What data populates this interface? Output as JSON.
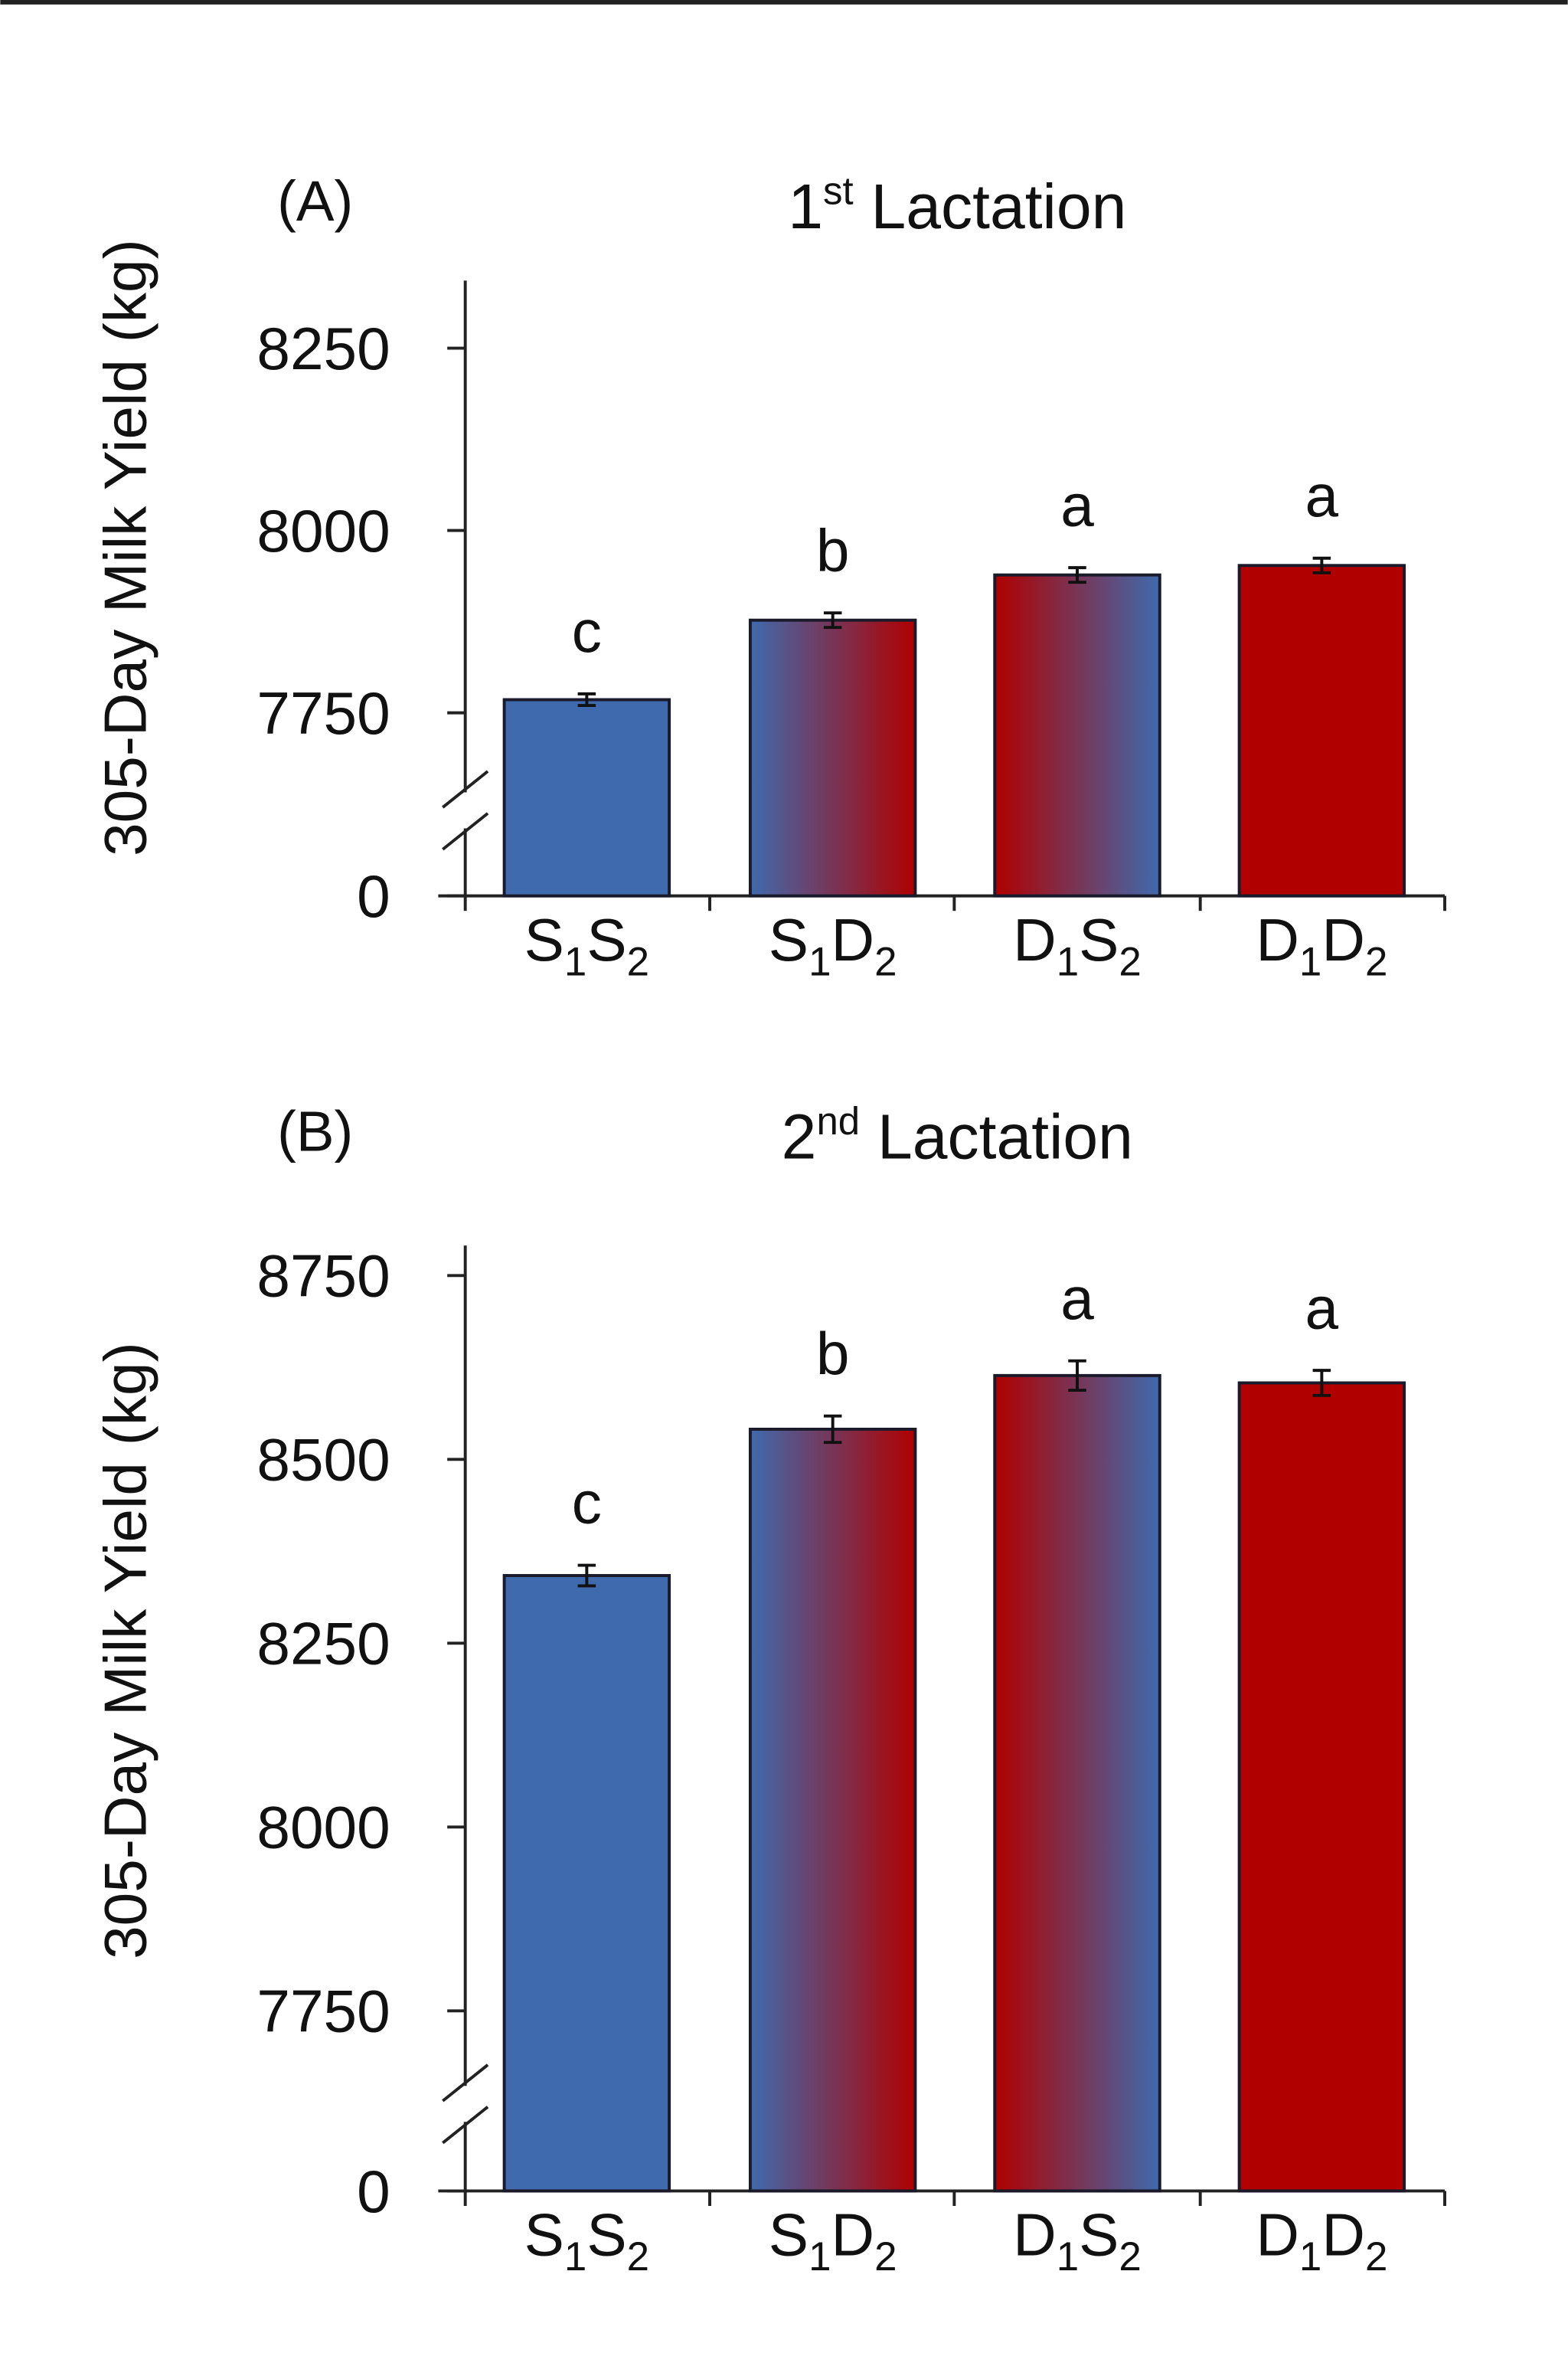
{
  "colors": {
    "blue": "#3f6aad",
    "red": "#b00000",
    "axis": "#222222"
  },
  "chart_data": [
    {
      "type": "bar",
      "panel_label": "(A)",
      "title": {
        "main": "1",
        "sup": "st",
        "rest": " Lactation"
      },
      "ylabel": "305-Day Milk Yield (kg)",
      "categories": [
        "S1S2",
        "S1D2",
        "D1S2",
        "D1D2"
      ],
      "values": [
        7768,
        7877,
        7939,
        7952
      ],
      "errors": [
        8,
        10,
        10,
        10
      ],
      "letters": [
        "c",
        "b",
        "a",
        "a"
      ],
      "fills": [
        "blue",
        "blue-to-red",
        "red-to-blue",
        "red"
      ],
      "yticks": [
        0,
        7750,
        8000,
        8250
      ],
      "ylim": [
        7650,
        8340
      ],
      "axis_break": true,
      "grid": false
    },
    {
      "type": "bar",
      "panel_label": "(B)",
      "title": {
        "main": "2",
        "sup": "nd",
        "rest": " Lactation"
      },
      "ylabel": "305-Day Milk Yield (kg)",
      "categories": [
        "S1S2",
        "S1D2",
        "D1S2",
        "D1D2"
      ],
      "values": [
        8342,
        8541,
        8614,
        8604
      ],
      "errors": [
        14,
        18,
        20,
        17
      ],
      "letters": [
        "c",
        "b",
        "a",
        "a"
      ],
      "fills": [
        "blue",
        "blue-to-red",
        "red-to-blue",
        "red"
      ],
      "yticks": [
        0,
        7750,
        8000,
        8250,
        8500,
        8750
      ],
      "ylim": [
        7650,
        8790
      ],
      "axis_break": true,
      "grid": false
    }
  ]
}
